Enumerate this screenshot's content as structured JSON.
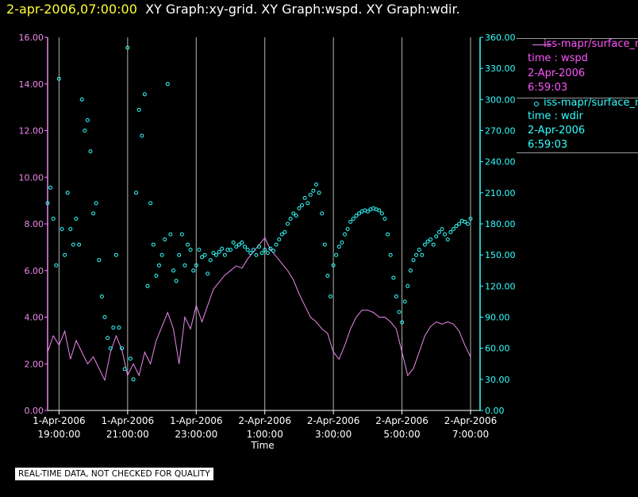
{
  "title": {
    "timestamp": "2-apr-2006,07:00:00",
    "graphs": "XY Graph:xy-grid.  XY Graph:wspd.  XY Graph:wdir."
  },
  "legend": [
    {
      "label": "iss-mapr/surface_m",
      "variable": "time : wspd",
      "date": "2-Apr-2006",
      "time": "6:59:03"
    },
    {
      "label": "iss-mapr/surface_m",
      "variable": "time : wdir",
      "date": "2-Apr-2006",
      "time": "6:59:03"
    }
  ],
  "note": "REAL-TIME DATA, NOT CHECKED FOR QUALITY",
  "colors": {
    "wspd": "#ee88ee",
    "wdir": "#33ffff",
    "grid": "#b4b4b4"
  },
  "chart_data": {
    "type": "line",
    "xlabel": "Time",
    "x_range": [
      "2006-04-01 18:40",
      "2006-04-02 07:00"
    ],
    "x_ticks": [
      {
        "date": "1-Apr-2006",
        "time": "19:00:00"
      },
      {
        "date": "1-Apr-2006",
        "time": "21:00:00"
      },
      {
        "date": "1-Apr-2006",
        "time": "23:00:00"
      },
      {
        "date": "2-Apr-2006",
        "time": "1:00:00"
      },
      {
        "date": "2-Apr-2006",
        "time": "3:00:00"
      },
      {
        "date": "2-Apr-2006",
        "time": "5:00:00"
      },
      {
        "date": "2-Apr-2006",
        "time": "7:00:00"
      }
    ],
    "grid": "vertical",
    "y_left": {
      "range": [
        0,
        16
      ],
      "ticks": [
        "0.00",
        "2.00",
        "4.00",
        "6.00",
        "8.00",
        "10.00",
        "12.00",
        "14.00",
        "16.00"
      ]
    },
    "y_right": {
      "range": [
        0,
        360
      ],
      "ticks": [
        "0.00",
        "30.00",
        "60.00",
        "90.00",
        "120.00",
        "150.00",
        "180.00",
        "210.00",
        "240.00",
        "270.00",
        "300.00",
        "330.00",
        "360.00"
      ]
    },
    "series": [
      {
        "name": "iss-mapr/surface_m time : wspd",
        "axis": "left",
        "style": "line",
        "points": [
          [
            "2006-04-01 18:40",
            2.5
          ],
          [
            "2006-04-01 18:50",
            3.2
          ],
          [
            "2006-04-01 19:00",
            2.8
          ],
          [
            "2006-04-01 19:10",
            3.4
          ],
          [
            "2006-04-01 19:20",
            2.2
          ],
          [
            "2006-04-01 19:30",
            3.0
          ],
          [
            "2006-04-01 19:40",
            2.5
          ],
          [
            "2006-04-01 19:50",
            2.0
          ],
          [
            "2006-04-01 20:00",
            2.3
          ],
          [
            "2006-04-01 20:10",
            1.8
          ],
          [
            "2006-04-01 20:20",
            1.3
          ],
          [
            "2006-04-01 20:30",
            2.5
          ],
          [
            "2006-04-01 20:40",
            3.2
          ],
          [
            "2006-04-01 20:50",
            2.6
          ],
          [
            "2006-04-01 21:00",
            1.5
          ],
          [
            "2006-04-01 21:10",
            2.0
          ],
          [
            "2006-04-01 21:20",
            1.5
          ],
          [
            "2006-04-01 21:30",
            2.5
          ],
          [
            "2006-04-01 21:40",
            2.0
          ],
          [
            "2006-04-01 21:50",
            3.0
          ],
          [
            "2006-04-01 22:00",
            3.6
          ],
          [
            "2006-04-01 22:10",
            4.2
          ],
          [
            "2006-04-01 22:20",
            3.5
          ],
          [
            "2006-04-01 22:30",
            2.0
          ],
          [
            "2006-04-01 22:40",
            4.0
          ],
          [
            "2006-04-01 22:50",
            3.5
          ],
          [
            "2006-04-01 23:00",
            4.5
          ],
          [
            "2006-04-01 23:10",
            3.8
          ],
          [
            "2006-04-01 23:20",
            4.5
          ],
          [
            "2006-04-01 23:30",
            5.2
          ],
          [
            "2006-04-01 23:40",
            5.5
          ],
          [
            "2006-04-01 23:50",
            5.8
          ],
          [
            "2006-04-02 00:00",
            6.0
          ],
          [
            "2006-04-02 00:10",
            6.2
          ],
          [
            "2006-04-02 00:20",
            6.1
          ],
          [
            "2006-04-02 00:30",
            6.5
          ],
          [
            "2006-04-02 00:40",
            6.8
          ],
          [
            "2006-04-02 00:50",
            7.1
          ],
          [
            "2006-04-02 01:00",
            7.4
          ],
          [
            "2006-04-02 01:10",
            6.9
          ],
          [
            "2006-04-02 01:20",
            6.6
          ],
          [
            "2006-04-02 01:30",
            6.3
          ],
          [
            "2006-04-02 01:40",
            6.0
          ],
          [
            "2006-04-02 01:50",
            5.6
          ],
          [
            "2006-04-02 02:00",
            5.0
          ],
          [
            "2006-04-02 02:10",
            4.5
          ],
          [
            "2006-04-02 02:20",
            4.0
          ],
          [
            "2006-04-02 02:30",
            3.8
          ],
          [
            "2006-04-02 02:40",
            3.5
          ],
          [
            "2006-04-02 02:50",
            3.3
          ],
          [
            "2006-04-02 03:00",
            2.5
          ],
          [
            "2006-04-02 03:10",
            2.2
          ],
          [
            "2006-04-02 03:20",
            2.8
          ],
          [
            "2006-04-02 03:30",
            3.5
          ],
          [
            "2006-04-02 03:40",
            4.0
          ],
          [
            "2006-04-02 03:50",
            4.3
          ],
          [
            "2006-04-02 04:00",
            4.3
          ],
          [
            "2006-04-02 04:10",
            4.2
          ],
          [
            "2006-04-02 04:20",
            4.0
          ],
          [
            "2006-04-02 04:30",
            4.0
          ],
          [
            "2006-04-02 04:40",
            3.8
          ],
          [
            "2006-04-02 04:50",
            3.5
          ],
          [
            "2006-04-02 05:00",
            2.5
          ],
          [
            "2006-04-02 05:10",
            1.5
          ],
          [
            "2006-04-02 05:20",
            1.8
          ],
          [
            "2006-04-02 05:30",
            2.5
          ],
          [
            "2006-04-02 05:40",
            3.2
          ],
          [
            "2006-04-02 05:50",
            3.6
          ],
          [
            "2006-04-02 06:00",
            3.8
          ],
          [
            "2006-04-02 06:10",
            3.7
          ],
          [
            "2006-04-02 06:20",
            3.8
          ],
          [
            "2006-04-02 06:30",
            3.7
          ],
          [
            "2006-04-02 06:40",
            3.4
          ],
          [
            "2006-04-02 06:50",
            2.8
          ],
          [
            "2006-04-02 07:00",
            2.3
          ]
        ]
      },
      {
        "name": "iss-mapr/surface_m time : wdir",
        "axis": "right",
        "style": "circles",
        "points": [
          [
            "2006-04-01 18:40",
            200
          ],
          [
            "2006-04-01 18:45",
            215
          ],
          [
            "2006-04-01 18:50",
            185
          ],
          [
            "2006-04-01 18:55",
            140
          ],
          [
            "2006-04-01 19:00",
            320
          ],
          [
            "2006-04-01 19:05",
            175
          ],
          [
            "2006-04-01 19:10",
            150
          ],
          [
            "2006-04-01 19:15",
            210
          ],
          [
            "2006-04-01 19:20",
            175
          ],
          [
            "2006-04-01 19:25",
            160
          ],
          [
            "2006-04-01 19:30",
            185
          ],
          [
            "2006-04-01 19:35",
            160
          ],
          [
            "2006-04-01 19:40",
            300
          ],
          [
            "2006-04-01 19:45",
            270
          ],
          [
            "2006-04-01 19:50",
            280
          ],
          [
            "2006-04-01 19:55",
            250
          ],
          [
            "2006-04-01 20:00",
            190
          ],
          [
            "2006-04-01 20:05",
            200
          ],
          [
            "2006-04-01 20:10",
            145
          ],
          [
            "2006-04-01 20:15",
            110
          ],
          [
            "2006-04-01 20:20",
            90
          ],
          [
            "2006-04-01 20:25",
            70
          ],
          [
            "2006-04-01 20:30",
            60
          ],
          [
            "2006-04-01 20:35",
            80
          ],
          [
            "2006-04-01 20:40",
            150
          ],
          [
            "2006-04-01 20:45",
            80
          ],
          [
            "2006-04-01 20:50",
            60
          ],
          [
            "2006-04-01 20:55",
            40
          ],
          [
            "2006-04-01 21:00",
            350
          ],
          [
            "2006-04-01 21:05",
            50
          ],
          [
            "2006-04-01 21:10",
            30
          ],
          [
            "2006-04-01 21:15",
            210
          ],
          [
            "2006-04-01 21:20",
            290
          ],
          [
            "2006-04-01 21:25",
            265
          ],
          [
            "2006-04-01 21:30",
            305
          ],
          [
            "2006-04-01 21:35",
            120
          ],
          [
            "2006-04-01 21:40",
            200
          ],
          [
            "2006-04-01 21:45",
            160
          ],
          [
            "2006-04-01 21:50",
            130
          ],
          [
            "2006-04-01 21:55",
            140
          ],
          [
            "2006-04-01 22:00",
            150
          ],
          [
            "2006-04-01 22:05",
            165
          ],
          [
            "2006-04-01 22:10",
            315
          ],
          [
            "2006-04-01 22:15",
            170
          ],
          [
            "2006-04-01 22:20",
            135
          ],
          [
            "2006-04-01 22:25",
            125
          ],
          [
            "2006-04-01 22:30",
            150
          ],
          [
            "2006-04-01 22:35",
            170
          ],
          [
            "2006-04-01 22:40",
            140
          ],
          [
            "2006-04-01 22:45",
            160
          ],
          [
            "2006-04-01 22:50",
            155
          ],
          [
            "2006-04-01 22:55",
            135
          ],
          [
            "2006-04-01 23:00",
            140
          ],
          [
            "2006-04-01 23:05",
            155
          ],
          [
            "2006-04-01 23:10",
            148
          ],
          [
            "2006-04-01 23:15",
            150
          ],
          [
            "2006-04-01 23:20",
            132
          ],
          [
            "2006-04-01 23:25",
            145
          ],
          [
            "2006-04-01 23:30",
            152
          ],
          [
            "2006-04-01 23:35",
            150
          ],
          [
            "2006-04-01 23:40",
            153
          ],
          [
            "2006-04-01 23:45",
            156
          ],
          [
            "2006-04-01 23:50",
            150
          ],
          [
            "2006-04-01 23:55",
            155
          ],
          [
            "2006-04-02 00:00",
            155
          ],
          [
            "2006-04-02 00:05",
            162
          ],
          [
            "2006-04-02 00:10",
            158
          ],
          [
            "2006-04-02 00:15",
            160
          ],
          [
            "2006-04-02 00:20",
            162
          ],
          [
            "2006-04-02 00:25",
            158
          ],
          [
            "2006-04-02 00:30",
            155
          ],
          [
            "2006-04-02 00:35",
            152
          ],
          [
            "2006-04-02 00:40",
            155
          ],
          [
            "2006-04-02 00:45",
            150
          ],
          [
            "2006-04-02 00:50",
            158
          ],
          [
            "2006-04-02 00:55",
            152
          ],
          [
            "2006-04-02 01:00",
            155
          ],
          [
            "2006-04-02 01:05",
            152
          ],
          [
            "2006-04-02 01:10",
            156
          ],
          [
            "2006-04-02 01:15",
            154
          ],
          [
            "2006-04-02 01:20",
            160
          ],
          [
            "2006-04-02 01:25",
            165
          ],
          [
            "2006-04-02 01:30",
            170
          ],
          [
            "2006-04-02 01:35",
            172
          ],
          [
            "2006-04-02 01:40",
            180
          ],
          [
            "2006-04-02 01:45",
            185
          ],
          [
            "2006-04-02 01:50",
            190
          ],
          [
            "2006-04-02 01:55",
            188
          ],
          [
            "2006-04-02 02:00",
            195
          ],
          [
            "2006-04-02 02:05",
            198
          ],
          [
            "2006-04-02 02:10",
            205
          ],
          [
            "2006-04-02 02:15",
            200
          ],
          [
            "2006-04-02 02:20",
            208
          ],
          [
            "2006-04-02 02:25",
            212
          ],
          [
            "2006-04-02 02:30",
            218
          ],
          [
            "2006-04-02 02:35",
            210
          ],
          [
            "2006-04-02 02:40",
            190
          ],
          [
            "2006-04-02 02:45",
            160
          ],
          [
            "2006-04-02 02:50",
            130
          ],
          [
            "2006-04-02 02:55",
            110
          ],
          [
            "2006-04-02 03:00",
            140
          ],
          [
            "2006-04-02 03:05",
            150
          ],
          [
            "2006-04-02 03:10",
            158
          ],
          [
            "2006-04-02 03:15",
            162
          ],
          [
            "2006-04-02 03:20",
            170
          ],
          [
            "2006-04-02 03:25",
            175
          ],
          [
            "2006-04-02 03:30",
            182
          ],
          [
            "2006-04-02 03:35",
            185
          ],
          [
            "2006-04-02 03:40",
            188
          ],
          [
            "2006-04-02 03:45",
            190
          ],
          [
            "2006-04-02 03:50",
            192
          ],
          [
            "2006-04-02 03:55",
            193
          ],
          [
            "2006-04-02 04:00",
            192
          ],
          [
            "2006-04-02 04:05",
            194
          ],
          [
            "2006-04-02 04:10",
            195
          ],
          [
            "2006-04-02 04:15",
            194
          ],
          [
            "2006-04-02 04:20",
            193
          ],
          [
            "2006-04-02 04:25",
            190
          ],
          [
            "2006-04-02 04:30",
            185
          ],
          [
            "2006-04-02 04:35",
            170
          ],
          [
            "2006-04-02 04:40",
            150
          ],
          [
            "2006-04-02 04:45",
            128
          ],
          [
            "2006-04-02 04:50",
            110
          ],
          [
            "2006-04-02 04:55",
            95
          ],
          [
            "2006-04-02 05:00",
            85
          ],
          [
            "2006-04-02 05:05",
            105
          ],
          [
            "2006-04-02 05:10",
            120
          ],
          [
            "2006-04-02 05:15",
            135
          ],
          [
            "2006-04-02 05:20",
            145
          ],
          [
            "2006-04-02 05:25",
            150
          ],
          [
            "2006-04-02 05:30",
            155
          ],
          [
            "2006-04-02 05:35",
            150
          ],
          [
            "2006-04-02 05:40",
            160
          ],
          [
            "2006-04-02 05:45",
            163
          ],
          [
            "2006-04-02 05:50",
            165
          ],
          [
            "2006-04-02 05:55",
            160
          ],
          [
            "2006-04-02 06:00",
            168
          ],
          [
            "2006-04-02 06:05",
            172
          ],
          [
            "2006-04-02 06:10",
            175
          ],
          [
            "2006-04-02 06:15",
            170
          ],
          [
            "2006-04-02 06:20",
            165
          ],
          [
            "2006-04-02 06:25",
            172
          ],
          [
            "2006-04-02 06:30",
            175
          ],
          [
            "2006-04-02 06:35",
            178
          ],
          [
            "2006-04-02 06:40",
            180
          ],
          [
            "2006-04-02 06:45",
            183
          ],
          [
            "2006-04-02 06:50",
            182
          ],
          [
            "2006-04-02 06:55",
            180
          ],
          [
            "2006-04-02 07:00",
            185
          ]
        ]
      }
    ]
  }
}
